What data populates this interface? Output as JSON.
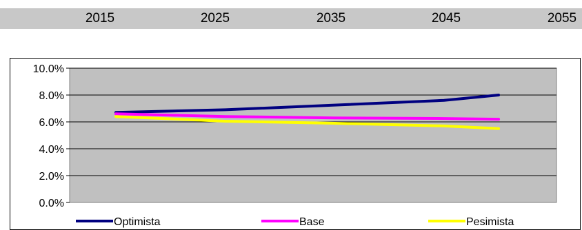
{
  "top_axis": {
    "labels": [
      "2015",
      "2025",
      "2035",
      "2045",
      "2055"
    ]
  },
  "colors": {
    "strip": "#c8c8c8",
    "plot_area": "#c0c0c0",
    "grid": "#000000",
    "series": [
      "#000080",
      "#ff00ff",
      "#ffff00"
    ]
  },
  "chart_data": {
    "type": "line",
    "x": [
      2015,
      2025,
      2035,
      2045,
      2050
    ],
    "series": [
      {
        "name": "Optimista",
        "values": [
          0.067,
          0.069,
          0.0725,
          0.076,
          0.08
        ]
      },
      {
        "name": "Base",
        "values": [
          0.066,
          0.064,
          0.063,
          0.0625,
          0.062
        ]
      },
      {
        "name": "Pesimista",
        "values": [
          0.064,
          0.0605,
          0.059,
          0.057,
          0.055
        ]
      }
    ],
    "title": "",
    "xlabel": "",
    "ylabel": "",
    "ylim": [
      0,
      0.1
    ],
    "yticks": [
      "0.0%",
      "2.0%",
      "4.0%",
      "6.0%",
      "8.0%",
      "10.0%"
    ],
    "grid": true,
    "legend": "bottom"
  }
}
